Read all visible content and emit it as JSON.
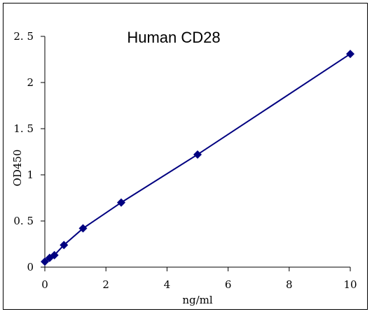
{
  "chart_data": {
    "type": "line",
    "title": "Human CD28",
    "xlabel": "ng/ml",
    "ylabel": "OD450",
    "xlim": [
      0,
      10
    ],
    "ylim": [
      0,
      2.5
    ],
    "xticks": [
      "0",
      "2",
      "4",
      "6",
      "8",
      "10"
    ],
    "yticks": [
      "0",
      "0.5",
      "1",
      "1.5",
      "2",
      "2.5"
    ],
    "grid": false,
    "legend": "none",
    "marker": "diamond",
    "series": [
      {
        "x": [
          0,
          0.156,
          0.313,
          0.625,
          1.25,
          2.5,
          5,
          10
        ],
        "y": [
          0.06,
          0.1,
          0.13,
          0.24,
          0.42,
          0.7,
          1.22,
          2.31
        ]
      }
    ],
    "colors": {
      "series": "#000080",
      "axis": "#000000"
    }
  }
}
